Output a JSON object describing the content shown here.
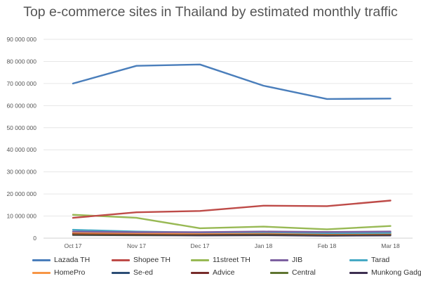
{
  "chart_data": {
    "type": "line",
    "title": "Top e-commerce sites in Thailand by estimated monthly traffic",
    "xlabel": "",
    "ylabel": "",
    "categories": [
      "Oct 17",
      "Nov 17",
      "Dec 17",
      "Jan 18",
      "Feb 18",
      "Mar 18"
    ],
    "ylim": [
      0,
      90000000
    ],
    "yticks": [
      0,
      10000000,
      20000000,
      30000000,
      40000000,
      50000000,
      60000000,
      70000000,
      80000000,
      90000000
    ],
    "ytick_labels": [
      "0",
      "10 000 000",
      "20 000 000",
      "30 000 000",
      "40 000 000",
      "50 000 000",
      "60 000 000",
      "70 000 000",
      "80 000 000",
      "90 000 000"
    ],
    "grid": true,
    "legend_position": "bottom",
    "series": [
      {
        "name": "Lazada TH",
        "color": "#4a7ebb",
        "values": [
          70000000,
          78000000,
          78600000,
          69000000,
          63000000,
          63200000
        ]
      },
      {
        "name": "Shopee TH",
        "color": "#be4b48",
        "values": [
          9200000,
          11700000,
          12300000,
          14700000,
          14500000,
          17000000
        ]
      },
      {
        "name": "11street TH",
        "color": "#98b954",
        "values": [
          10600000,
          9200000,
          4500000,
          5200000,
          4000000,
          5500000
        ]
      },
      {
        "name": "JIB",
        "color": "#7d60a0",
        "values": [
          3000000,
          2700000,
          2700000,
          3000000,
          2800000,
          3000000
        ]
      },
      {
        "name": "Tarad",
        "color": "#46aac5",
        "values": [
          3800000,
          3000000,
          2600000,
          2700000,
          2300000,
          2400000
        ]
      },
      {
        "name": "HomePro",
        "color": "#f79646",
        "values": [
          2500000,
          2300000,
          2200000,
          2400000,
          2100000,
          2200000
        ]
      },
      {
        "name": "Se-ed",
        "color": "#2c4d75",
        "values": [
          2800000,
          2500000,
          2300000,
          2500000,
          2200000,
          2300000
        ]
      },
      {
        "name": "Advice",
        "color": "#772c2a",
        "values": [
          2000000,
          1900000,
          1900000,
          2100000,
          1800000,
          1900000
        ]
      },
      {
        "name": "Central",
        "color": "#5f7530",
        "values": [
          1700000,
          1600000,
          1700000,
          1800000,
          1600000,
          1700000
        ]
      },
      {
        "name": "Munkong Gadget",
        "color": "#3d2f51",
        "values": [
          1400000,
          1300000,
          1200000,
          1300000,
          1100000,
          1200000
        ]
      }
    ]
  }
}
